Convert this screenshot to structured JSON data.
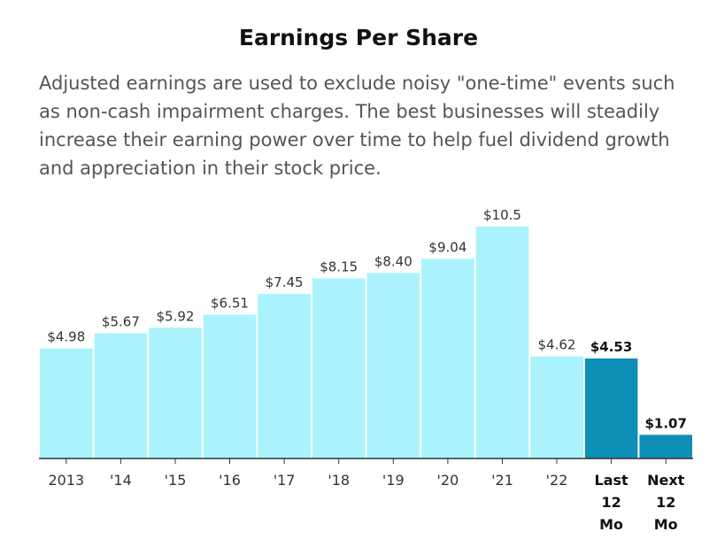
{
  "header": {
    "title": "Earnings Per Share",
    "description": "Adjusted earnings are used to exclude noisy \"one-time\" events such as non-cash impairment charges. The best businesses will steadily increase their earning power over time to help fuel dividend growth and appreciation in their stock price."
  },
  "chart_data": {
    "type": "bar",
    "title": "Earnings Per Share",
    "categories": [
      "2013",
      "'14",
      "'15",
      "'16",
      "'17",
      "'18",
      "'19",
      "'20",
      "'21",
      "'22",
      "Last 12 Mo",
      "Next 12 Mo"
    ],
    "category_lines": [
      [
        "2013"
      ],
      [
        "'14"
      ],
      [
        "'15"
      ],
      [
        "'16"
      ],
      [
        "'17"
      ],
      [
        "'18"
      ],
      [
        "'19"
      ],
      [
        "'20"
      ],
      [
        "'21"
      ],
      [
        "'22"
      ],
      [
        "Last",
        "12",
        "Mo"
      ],
      [
        "Next",
        "12",
        "Mo"
      ]
    ],
    "values": [
      4.98,
      5.67,
      5.92,
      6.51,
      7.45,
      8.15,
      8.4,
      9.04,
      10.5,
      4.62,
      4.53,
      1.07
    ],
    "data_labels": [
      "$4.98",
      "$5.67",
      "$5.92",
      "$6.51",
      "$7.45",
      "$8.15",
      "$8.40",
      "$9.04",
      "$10.5",
      "$4.62",
      "$4.53",
      "$1.07"
    ],
    "highlight": [
      false,
      false,
      false,
      false,
      false,
      false,
      false,
      false,
      false,
      false,
      true,
      true
    ],
    "colors": {
      "normal": "#aaf3fd",
      "highlight": "#0d8fb6",
      "axis": "#333333",
      "label": "#333333"
    },
    "ylim": [
      0,
      10.5
    ],
    "grid": false,
    "legend": "none"
  }
}
